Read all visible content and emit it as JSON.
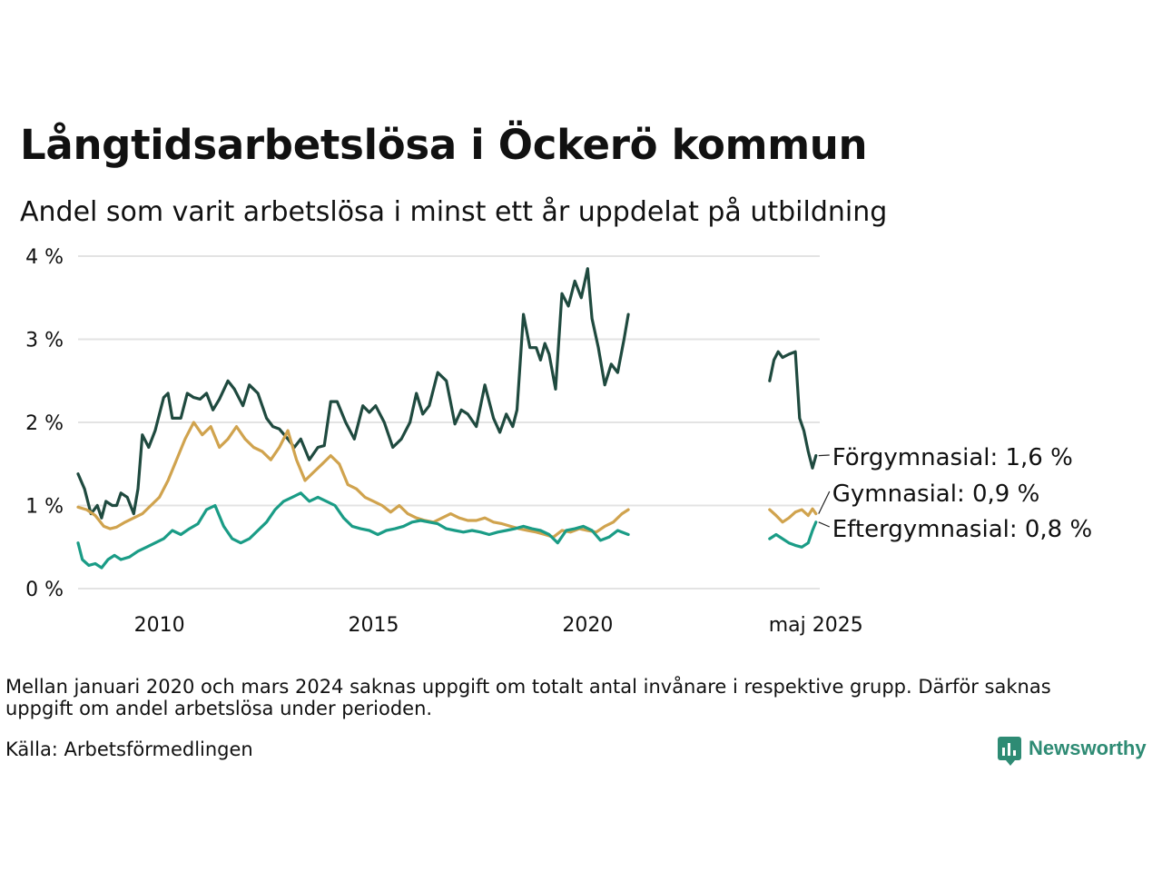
{
  "title": "Långtidsarbetslösa i Öckerö kommun",
  "subtitle": "Andel som varit arbetslösa i minst ett år uppdelat på utbildning",
  "note": "Mellan januari 2020 och mars 2024 saknas uppgift om totalt antal invånare i respektive grupp. Därför saknas uppgift om andel arbetslösa under perioden.",
  "source": "Källa: Arbetsförmedlingen",
  "brand": "Newsworthy",
  "chart_data": {
    "type": "line",
    "title": "Långtidsarbetslösa i Öckerö kommun",
    "subtitle": "Andel som varit arbetslösa i minst ett år uppdelat på utbildning",
    "x_unit": "decimal year",
    "xlim": [
      2008.1,
      2025.42
    ],
    "ylim": [
      0,
      4
    ],
    "grid": true,
    "legend": "direct labels at right end of lines",
    "x_ticks": [
      {
        "value": 2010,
        "label": "2010"
      },
      {
        "value": 2015,
        "label": "2015"
      },
      {
        "value": 2020,
        "label": "2020"
      },
      {
        "value": 2025.33,
        "label": "maj 2025"
      }
    ],
    "y_ticks": [
      {
        "value": 0,
        "label": "0 %"
      },
      {
        "value": 1,
        "label": "1 %"
      },
      {
        "value": 2,
        "label": "2 %"
      },
      {
        "value": 3,
        "label": "3 %"
      },
      {
        "value": 4,
        "label": "4 %"
      }
    ],
    "series": [
      {
        "name": "Förgymnasial",
        "end_label": "Förgymnasial: 1,6 %",
        "color": "#1f4a3f",
        "segments": [
          {
            "x": [
              2008.1,
              2008.25,
              2008.4,
              2008.55,
              2008.65,
              2008.75,
              2008.9,
              2009.0,
              2009.1,
              2009.25,
              2009.4,
              2009.5,
              2009.6,
              2009.75,
              2009.9,
              2010.0,
              2010.1,
              2010.2,
              2010.3,
              2010.5,
              2010.65,
              2010.8,
              2010.95,
              2011.1,
              2011.25,
              2011.4,
              2011.6,
              2011.75,
              2011.95,
              2012.1,
              2012.3,
              2012.5,
              2012.65,
              2012.8,
              2013.0,
              2013.15,
              2013.3,
              2013.5,
              2013.7,
              2013.85,
              2014.0,
              2014.15,
              2014.35,
              2014.55,
              2014.75,
              2014.9,
              2015.05,
              2015.25,
              2015.45,
              2015.65,
              2015.85,
              2016.0,
              2016.15,
              2016.3,
              2016.5,
              2016.7,
              2016.9,
              2017.05,
              2017.2,
              2017.4,
              2017.6,
              2017.8,
              2017.95,
              2018.1,
              2018.25,
              2018.35,
              2018.5,
              2018.65,
              2018.8,
              2018.9,
              2019.0,
              2019.1,
              2019.25,
              2019.4,
              2019.55,
              2019.7,
              2019.85,
              2020.0,
              2020.1,
              2020.25,
              2020.4,
              2020.55,
              2020.7,
              2020.85,
              2020.95
            ],
            "y": [
              1.38,
              1.2,
              0.9,
              1.0,
              0.85,
              1.05,
              1.0,
              1.0,
              1.15,
              1.1,
              0.9,
              1.2,
              1.85,
              1.7,
              1.9,
              2.1,
              2.3,
              2.35,
              2.05,
              2.05,
              2.35,
              2.3,
              2.28,
              2.35,
              2.15,
              2.28,
              2.5,
              2.4,
              2.2,
              2.45,
              2.35,
              2.05,
              1.95,
              1.92,
              1.8,
              1.7,
              1.8,
              1.55,
              1.7,
              1.72,
              2.25,
              2.25,
              2.0,
              1.8,
              2.2,
              2.12,
              2.2,
              2.0,
              1.7,
              1.8,
              2.0,
              2.35,
              2.1,
              2.2,
              2.6,
              2.5,
              1.98,
              2.15,
              2.1,
              1.95,
              2.45,
              2.05,
              1.88,
              2.1,
              1.95,
              2.15,
              3.3,
              2.9,
              2.9,
              2.75,
              2.95,
              2.82,
              2.4,
              3.55,
              3.4,
              3.7,
              3.5,
              3.85,
              3.25,
              2.9,
              2.45,
              2.7,
              2.6,
              3.0,
              3.3
            ]
          },
          {
            "x": [
              2024.25,
              2024.35,
              2024.45,
              2024.55,
              2024.7,
              2024.85,
              2024.95,
              2025.05,
              2025.15,
              2025.25,
              2025.33
            ],
            "y": [
              2.5,
              2.75,
              2.85,
              2.78,
              2.82,
              2.85,
              2.05,
              1.9,
              1.65,
              1.45,
              1.6
            ]
          }
        ]
      },
      {
        "name": "Gymnasial",
        "end_label": "Gymnasial: 0,9 %",
        "color": "#d0a34e",
        "segments": [
          {
            "x": [
              2008.1,
              2008.3,
              2008.5,
              2008.7,
              2008.85,
              2009.0,
              2009.2,
              2009.4,
              2009.6,
              2009.8,
              2010.0,
              2010.2,
              2010.4,
              2010.6,
              2010.8,
              2011.0,
              2011.2,
              2011.4,
              2011.6,
              2011.8,
              2012.0,
              2012.2,
              2012.4,
              2012.6,
              2012.8,
              2013.0,
              2013.2,
              2013.4,
              2013.6,
              2013.8,
              2014.0,
              2014.2,
              2014.4,
              2014.6,
              2014.8,
              2015.0,
              2015.2,
              2015.4,
              2015.6,
              2015.8,
              2016.0,
              2016.2,
              2016.4,
              2016.6,
              2016.8,
              2017.0,
              2017.2,
              2017.4,
              2017.6,
              2017.8,
              2018.0,
              2018.2,
              2018.4,
              2018.6,
              2018.8,
              2019.0,
              2019.2,
              2019.4,
              2019.6,
              2019.8,
              2020.0,
              2020.2,
              2020.4,
              2020.6,
              2020.8,
              2020.95
            ],
            "y": [
              0.98,
              0.95,
              0.88,
              0.75,
              0.72,
              0.74,
              0.8,
              0.85,
              0.9,
              1.0,
              1.1,
              1.3,
              1.55,
              1.8,
              2.0,
              1.85,
              1.95,
              1.7,
              1.8,
              1.95,
              1.8,
              1.7,
              1.65,
              1.55,
              1.7,
              1.9,
              1.55,
              1.3,
              1.4,
              1.5,
              1.6,
              1.5,
              1.25,
              1.2,
              1.1,
              1.05,
              1.0,
              0.92,
              1.0,
              0.9,
              0.85,
              0.82,
              0.8,
              0.85,
              0.9,
              0.85,
              0.82,
              0.82,
              0.85,
              0.8,
              0.78,
              0.75,
              0.72,
              0.7,
              0.68,
              0.65,
              0.62,
              0.7,
              0.68,
              0.72,
              0.7,
              0.68,
              0.75,
              0.8,
              0.9,
              0.95
            ]
          },
          {
            "x": [
              2024.25,
              2024.4,
              2024.55,
              2024.7,
              2024.85,
              2025.0,
              2025.15,
              2025.25,
              2025.33
            ],
            "y": [
              0.95,
              0.88,
              0.8,
              0.85,
              0.92,
              0.95,
              0.88,
              0.96,
              0.9
            ]
          }
        ]
      },
      {
        "name": "Eftergymnasial",
        "end_label": "Eftergymnasial: 0,8 %",
        "color": "#1a9c86",
        "segments": [
          {
            "x": [
              2008.1,
              2008.2,
              2008.35,
              2008.5,
              2008.65,
              2008.8,
              2008.95,
              2009.1,
              2009.3,
              2009.5,
              2009.7,
              2009.9,
              2010.1,
              2010.3,
              2010.5,
              2010.7,
              2010.9,
              2011.1,
              2011.3,
              2011.5,
              2011.7,
              2011.9,
              2012.1,
              2012.3,
              2012.5,
              2012.7,
              2012.9,
              2013.1,
              2013.3,
              2013.5,
              2013.7,
              2013.9,
              2014.1,
              2014.3,
              2014.5,
              2014.7,
              2014.9,
              2015.1,
              2015.3,
              2015.5,
              2015.7,
              2015.9,
              2016.1,
              2016.3,
              2016.5,
              2016.7,
              2016.9,
              2017.1,
              2017.3,
              2017.5,
              2017.7,
              2017.9,
              2018.1,
              2018.3,
              2018.5,
              2018.7,
              2018.9,
              2019.1,
              2019.3,
              2019.5,
              2019.7,
              2019.9,
              2020.1,
              2020.3,
              2020.5,
              2020.7,
              2020.95
            ],
            "y": [
              0.55,
              0.35,
              0.28,
              0.3,
              0.25,
              0.35,
              0.4,
              0.35,
              0.38,
              0.45,
              0.5,
              0.55,
              0.6,
              0.7,
              0.65,
              0.72,
              0.78,
              0.95,
              1.0,
              0.75,
              0.6,
              0.55,
              0.6,
              0.7,
              0.8,
              0.95,
              1.05,
              1.1,
              1.15,
              1.05,
              1.1,
              1.05,
              1.0,
              0.85,
              0.75,
              0.72,
              0.7,
              0.65,
              0.7,
              0.72,
              0.75,
              0.8,
              0.82,
              0.8,
              0.78,
              0.72,
              0.7,
              0.68,
              0.7,
              0.68,
              0.65,
              0.68,
              0.7,
              0.72,
              0.75,
              0.72,
              0.7,
              0.65,
              0.55,
              0.7,
              0.72,
              0.75,
              0.7,
              0.58,
              0.62,
              0.7,
              0.65
            ]
          },
          {
            "x": [
              2024.25,
              2024.4,
              2024.55,
              2024.7,
              2024.85,
              2025.0,
              2025.15,
              2025.25,
              2025.33
            ],
            "y": [
              0.6,
              0.65,
              0.6,
              0.55,
              0.52,
              0.5,
              0.55,
              0.7,
              0.8
            ]
          }
        ]
      }
    ]
  }
}
